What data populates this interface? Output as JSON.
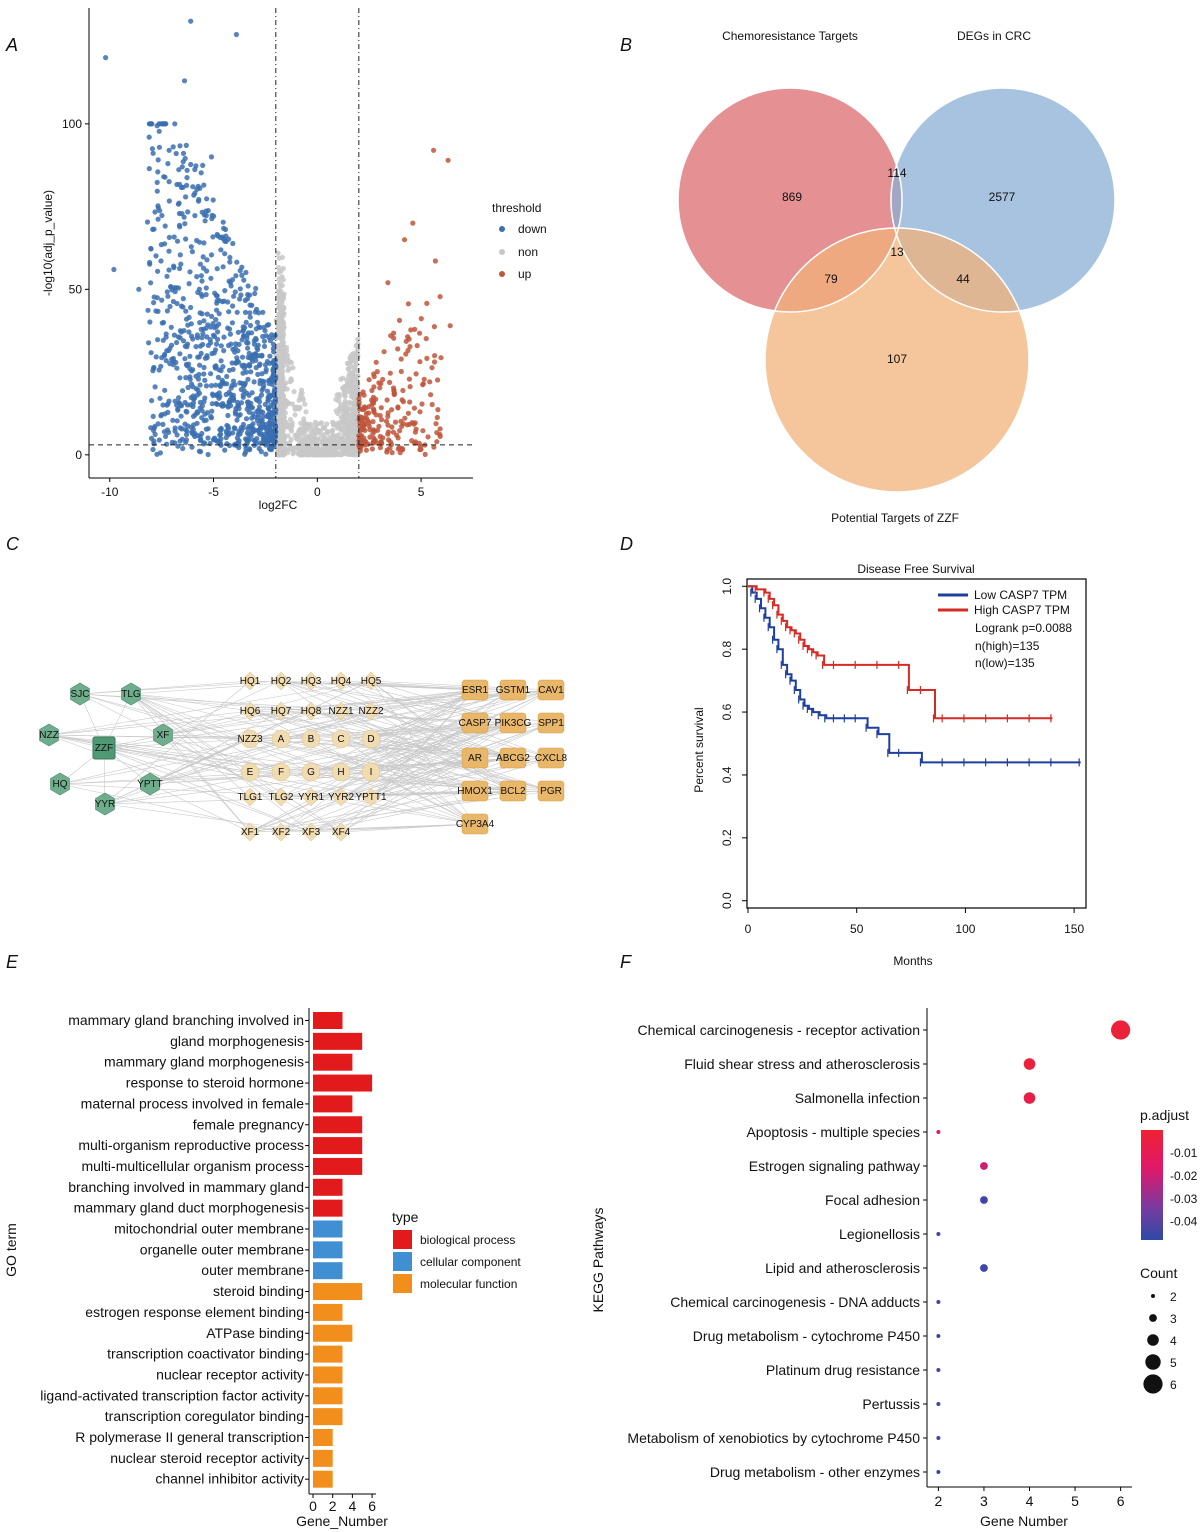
{
  "panels": {
    "a": "A",
    "b": "B",
    "c": "C",
    "d": "D",
    "e": "E",
    "f": "F"
  },
  "chart_data": [
    {
      "id": "volcano",
      "type": "scatter",
      "title": "",
      "xlabel": "log2FC",
      "ylabel": "-log10(adj_p_value)",
      "xlim": [
        -11,
        7.5
      ],
      "ylim": [
        -7,
        135
      ],
      "xticks": [
        -10,
        -5,
        0,
        5
      ],
      "yticks": [
        0,
        50,
        100
      ],
      "thresholds": {
        "log2fc": [
          -2,
          2
        ],
        "neg_log10_p": 3
      },
      "legend": {
        "title": "threshold",
        "position": "right",
        "items": [
          {
            "label": "down",
            "color": "#3a6fb0"
          },
          {
            "label": "non",
            "color": "#c8c8c8"
          },
          {
            "label": "up",
            "color": "#c0553a"
          }
        ]
      },
      "highlight_points": {
        "down": [
          [
            -10.2,
            120
          ],
          [
            -6.1,
            131
          ],
          [
            -3.9,
            127
          ],
          [
            -6.4,
            113
          ],
          [
            -8.1,
            96
          ],
          [
            -9.8,
            56
          ],
          [
            -8.6,
            50
          ],
          [
            -7.2,
            88
          ],
          [
            -5.1,
            90
          ]
        ],
        "up": [
          [
            5.6,
            92
          ],
          [
            6.3,
            89
          ],
          [
            4.6,
            70
          ],
          [
            4.2,
            65
          ],
          [
            6.4,
            39
          ],
          [
            3.4,
            52
          ]
        ]
      }
    },
    {
      "id": "venn",
      "type": "venn",
      "sets": [
        "Chemoresistance Targets",
        "DEGs in CRC",
        "Potential Targets of ZZF"
      ],
      "regions": {
        "chemo_only": "869",
        "degs_only": "2577",
        "zzf_only": "107",
        "chemo_degs": "114",
        "chemo_zzf": "79",
        "degs_zzf": "44",
        "all": "13"
      },
      "colors": [
        "#e07c80",
        "#8bafd6",
        "#f2b27a"
      ]
    },
    {
      "id": "network",
      "type": "network",
      "herbs": [
        "SJC",
        "TLG",
        "NZZ",
        "ZZF",
        "XF",
        "HQ",
        "YPTT",
        "YYR"
      ],
      "compounds": [
        [
          "HQ1",
          "HQ2",
          "HQ3",
          "HQ4",
          "HQ5"
        ],
        [
          "HQ6",
          "HQ7",
          "HQ8",
          "NZZ1",
          "NZZ2"
        ],
        [
          "NZZ3",
          "A",
          "B",
          "C",
          "D"
        ],
        [
          "E",
          "F",
          "G",
          "H",
          "I"
        ],
        [
          "TLG1",
          "TLG2",
          "YYR1",
          "YYR2",
          "YPTT1"
        ],
        [
          "XF1",
          "XF2",
          "XF3",
          "XF4"
        ]
      ],
      "targets": [
        [
          "ESR1",
          "GSTM1",
          "CAV1"
        ],
        [
          "CASP7",
          "PIK3CG",
          "SPP1"
        ],
        [
          "AR",
          "ABCG2",
          "CXCL8"
        ],
        [
          "HMOX1",
          "BCL2",
          "PGR"
        ],
        [
          "CYP3A4"
        ]
      ],
      "colors": {
        "herb": "#6fae8c",
        "compound": "#f1dbb0",
        "target": "#e9b76a",
        "edge": "#c8c8c8"
      }
    },
    {
      "id": "survival",
      "type": "line",
      "title": "Disease Free Survival",
      "xlabel": "Months",
      "ylabel": "Percent survival",
      "xlim": [
        0,
        155
      ],
      "ylim": [
        -0.02,
        1.02
      ],
      "xticks": [
        0,
        50,
        100,
        150
      ],
      "yticks": [
        0.0,
        0.2,
        0.4,
        0.6,
        0.8,
        1.0
      ],
      "legend_labels": [
        "Low CASP7 TPM",
        "High CASP7 TPM"
      ],
      "stats": [
        "Logrank p=0.0088",
        "n(high)=135",
        "n(low)=135"
      ],
      "series": [
        {
          "name": "Low CASP7 TPM",
          "color": "#1f3f9e",
          "x": [
            0,
            2,
            4,
            6,
            8,
            10,
            12,
            14,
            16,
            18,
            20,
            22,
            24,
            26,
            28,
            30,
            33,
            36,
            40,
            45,
            50,
            55,
            60,
            65,
            70,
            80,
            90,
            100,
            110,
            120,
            130,
            140,
            153
          ],
          "y": [
            1.0,
            0.98,
            0.96,
            0.93,
            0.9,
            0.87,
            0.83,
            0.8,
            0.75,
            0.72,
            0.7,
            0.67,
            0.64,
            0.62,
            0.61,
            0.6,
            0.59,
            0.58,
            0.58,
            0.58,
            0.58,
            0.55,
            0.53,
            0.47,
            0.47,
            0.44,
            0.44,
            0.44,
            0.44,
            0.44,
            0.44,
            0.44,
            0.44
          ]
        },
        {
          "name": "High CASP7 TPM",
          "color": "#d62a24",
          "x": [
            0,
            4,
            8,
            10,
            12,
            14,
            16,
            18,
            20,
            22,
            24,
            26,
            28,
            30,
            32,
            35,
            40,
            50,
            60,
            70,
            74,
            80,
            86,
            90,
            100,
            110,
            120,
            130,
            140
          ],
          "y": [
            1.0,
            0.99,
            0.98,
            0.96,
            0.94,
            0.91,
            0.89,
            0.87,
            0.86,
            0.85,
            0.83,
            0.81,
            0.8,
            0.79,
            0.78,
            0.75,
            0.75,
            0.75,
            0.75,
            0.75,
            0.67,
            0.67,
            0.58,
            0.58,
            0.58,
            0.58,
            0.58,
            0.58,
            0.58
          ]
        }
      ]
    },
    {
      "id": "go",
      "type": "bar",
      "orientation": "horizontal",
      "xlabel": "Gene_Number",
      "ylabel": "GO term",
      "xlim": [
        0,
        6.6
      ],
      "xticks": [
        0,
        2,
        4,
        6
      ],
      "legend": {
        "title": "type",
        "items": [
          {
            "label": "biological process",
            "color": "#e31a1c"
          },
          {
            "label": "cellular component",
            "color": "#3f8fd2"
          },
          {
            "label": "molecular function",
            "color": "#f28e1c"
          }
        ]
      },
      "categories": [
        "mammary gland branching involved in",
        "gland morphogenesis",
        "mammary gland morphogenesis",
        "response to steroid hormone",
        "maternal process involved in female",
        "female pregnancy",
        "multi-organism reproductive process",
        "multi-multicellular organism process",
        "branching involved in mammary gland",
        "mammary gland duct morphogenesis",
        "mitochondrial outer membrane",
        "organelle outer membrane",
        "outer membrane",
        "steroid binding",
        "estrogen response element binding",
        "ATPase binding",
        "transcription coactivator binding",
        "nuclear receptor activity",
        "ligand-activated transcription factor activity",
        "transcription coregulator binding",
        "R polymerase II general transcription",
        "nuclear steroid receptor activity",
        "channel inhibitor activity"
      ],
      "values": [
        3,
        5,
        4,
        6,
        4,
        5,
        5,
        5,
        3,
        3,
        3,
        3,
        3,
        5,
        3,
        4,
        3,
        3,
        3,
        3,
        2,
        2,
        2
      ],
      "types": [
        0,
        0,
        0,
        0,
        0,
        0,
        0,
        0,
        0,
        0,
        1,
        1,
        1,
        2,
        2,
        2,
        2,
        2,
        2,
        2,
        2,
        2,
        2
      ]
    },
    {
      "id": "kegg",
      "type": "scatter",
      "xlabel": "Gene Number",
      "ylabel": "KEGG Pathways",
      "xlim": [
        1.75,
        6.25
      ],
      "xticks": [
        2,
        3,
        4,
        5,
        6
      ],
      "categories": [
        "Chemical carcinogenesis - receptor activation",
        "Fluid shear stress and atherosclerosis",
        "Salmonella infection",
        "Apoptosis - multiple species",
        "Estrogen signaling pathway",
        "Focal adhesion",
        "Legionellosis",
        "Lipid and atherosclerosis",
        "Chemical carcinogenesis - DNA adducts",
        "Drug metabolism - cytochrome P450",
        "Platinum drug resistance",
        "Pertussis",
        "Metabolism of xenobiotics by cytochrome P450",
        "Drug metabolism - other enzymes"
      ],
      "gene_number": [
        6,
        4,
        4,
        2,
        3,
        3,
        2,
        3,
        2,
        2,
        2,
        2,
        2,
        2
      ],
      "count": [
        6,
        4,
        4,
        2,
        3,
        3,
        2,
        3,
        2,
        2,
        2,
        2,
        2,
        2
      ],
      "p_adjust": [
        -0.002,
        -0.003,
        -0.006,
        -0.012,
        -0.02,
        -0.045,
        -0.045,
        -0.045,
        -0.045,
        -0.045,
        -0.045,
        -0.045,
        -0.045,
        -0.045
      ],
      "colorbar": {
        "title": "p.adjust",
        "ticks": [
          "-0.01",
          "-0.02",
          "-0.03",
          "-0.04"
        ],
        "tick_values": [
          -0.01,
          -0.02,
          -0.03,
          -0.04
        ],
        "range": [
          -0.048,
          0.0
        ]
      },
      "size_legend": {
        "title": "Count",
        "values": [
          2,
          3,
          4,
          5,
          6
        ]
      }
    }
  ]
}
